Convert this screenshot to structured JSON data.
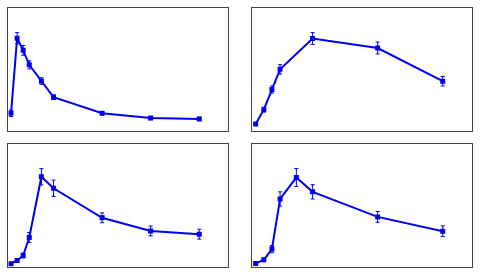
{
  "chart_data": [
    {
      "type": "line",
      "x": [
        0.25,
        0.5,
        0.75,
        1.0,
        1.5,
        2.0,
        4.0,
        6.0,
        8.0
      ],
      "values": [
        22,
        115,
        100,
        82,
        62,
        42,
        22,
        16,
        15
      ],
      "yerr": [
        4,
        7,
        6,
        5,
        4,
        3,
        2,
        2,
        2
      ],
      "color": "#0000ee",
      "marker": "square",
      "xlim": [
        0.125,
        9.2
      ],
      "ylim": [
        0,
        152.5
      ],
      "grid": false,
      "tick_labels": false
    },
    {
      "type": "line",
      "x": [
        0.25,
        0.5,
        0.75,
        1.0,
        2.0,
        4.0,
        6.0
      ],
      "values": [
        6,
        18,
        35,
        52,
        78,
        70,
        42
      ],
      "yerr": [
        1,
        2,
        3,
        4,
        5,
        5,
        4
      ],
      "color": "#0000ee",
      "marker": "square",
      "xlim": [
        0.125,
        6.9
      ],
      "ylim": [
        0,
        103.75
      ],
      "grid": false,
      "tick_labels": false
    },
    {
      "type": "line",
      "x": [
        0.25,
        0.5,
        0.75,
        1.0,
        1.5,
        2.0,
        4.0,
        6.0,
        8.0
      ],
      "values": [
        2,
        4,
        7,
        18,
        55,
        48,
        30,
        22,
        20
      ],
      "yerr": [
        0.5,
        1,
        1.5,
        3,
        5,
        5,
        3,
        3,
        3
      ],
      "color": "#0000ee",
      "marker": "square",
      "xlim": [
        0.125,
        9.2
      ],
      "ylim": [
        0,
        75
      ],
      "grid": false,
      "tick_labels": false
    },
    {
      "type": "line",
      "x": [
        0.25,
        0.5,
        0.75,
        1.0,
        1.5,
        2.0,
        4.0,
        6.0
      ],
      "values": [
        2,
        4,
        10,
        38,
        50,
        42,
        28,
        20
      ],
      "yerr": [
        0.5,
        1,
        2,
        4,
        5,
        4,
        3,
        3
      ],
      "color": "#0000ee",
      "marker": "square",
      "xlim": [
        0.125,
        6.9
      ],
      "ylim": [
        0,
        68.75
      ],
      "grid": false,
      "tick_labels": false
    }
  ]
}
